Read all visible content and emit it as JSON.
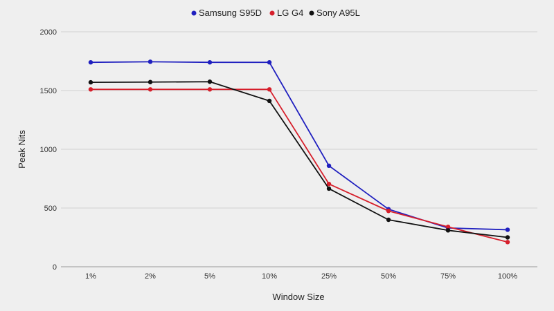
{
  "chart_data": {
    "type": "line",
    "title": "",
    "xlabel": "Window Size",
    "ylabel": "Peak Nits",
    "categories": [
      "1%",
      "2%",
      "5%",
      "10%",
      "25%",
      "50%",
      "75%",
      "100%"
    ],
    "ylim": [
      0,
      2000
    ],
    "yticks": [
      0,
      500,
      1000,
      1500,
      2000
    ],
    "grid": true,
    "legend": "top-center",
    "series": [
      {
        "name": "Samsung S95D",
        "color": "#1f1fbf",
        "values": [
          1740,
          1745,
          1740,
          1740,
          860,
          490,
          330,
          315
        ]
      },
      {
        "name": "LG G4",
        "color": "#d61f2b",
        "values": [
          1510,
          1510,
          1510,
          1510,
          705,
          475,
          340,
          210
        ]
      },
      {
        "name": "Sony A95L",
        "color": "#111111",
        "values": [
          1570,
          1572,
          1575,
          1412,
          665,
          400,
          310,
          250
        ]
      }
    ]
  }
}
